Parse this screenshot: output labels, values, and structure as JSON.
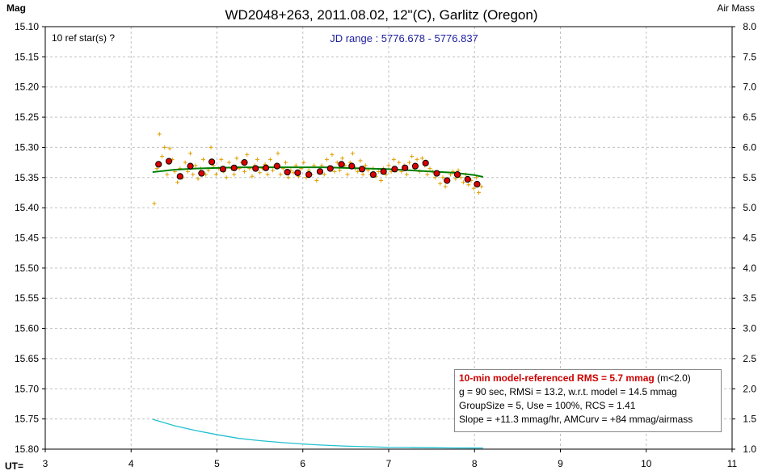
{
  "chart_data": {
    "type": "scatter",
    "title": "WD2048+263, 2011.08.02, 12\"(C), Garlitz (Oregon)",
    "subtitle": "JD range : 5776.678 - 5776.837",
    "note_top_left": "10 ref star(s) ?",
    "ylabel_left": "Mag",
    "ylabel_right": "Air Mass",
    "xlabel": "UT=",
    "xlim": [
      3,
      11
    ],
    "ylim_left": [
      15.1,
      15.8
    ],
    "ylim_left_inverted": true,
    "ylim_right": [
      1.0,
      8.0
    ],
    "grid": true,
    "x_ticks": [
      "3",
      "4",
      "5",
      "6",
      "7",
      "8",
      "9",
      "10",
      "11"
    ],
    "y_ticks_left": [
      "15.10",
      "15.15",
      "15.20",
      "15.25",
      "15.30",
      "15.35",
      "15.40",
      "15.45",
      "15.50",
      "15.55",
      "15.60",
      "15.65",
      "15.70",
      "15.75",
      "15.80"
    ],
    "y_ticks_right": [
      "8.0",
      "7.5",
      "7.0",
      "6.5",
      "6.0",
      "5.5",
      "5.0",
      "4.5",
      "4.0",
      "3.5",
      "3.0",
      "2.5",
      "2.0",
      "1.5",
      "1.0"
    ],
    "colors": {
      "raw": "#e0a000",
      "binned_fill": "#dd0000",
      "model": "#008000",
      "airmass": "#22c0d0",
      "grid": "#c0c0c0",
      "subtitle": "#2020a0",
      "rms_text": "#cc0000"
    },
    "series": [
      {
        "kind": "raw",
        "points": [
          [
            4.27,
            15.393
          ],
          [
            4.3,
            15.335
          ],
          [
            4.33,
            15.278
          ],
          [
            4.36,
            15.315
          ],
          [
            4.39,
            15.3
          ],
          [
            4.42,
            15.345
          ],
          [
            4.45,
            15.302
          ],
          [
            4.48,
            15.32
          ],
          [
            4.51,
            15.34
          ],
          [
            4.54,
            15.358
          ],
          [
            4.57,
            15.335
          ],
          [
            4.6,
            15.35
          ],
          [
            4.63,
            15.325
          ],
          [
            4.66,
            15.34
          ],
          [
            4.69,
            15.31
          ],
          [
            4.72,
            15.345
          ],
          [
            4.75,
            15.33
          ],
          [
            4.78,
            15.352
          ],
          [
            4.81,
            15.335
          ],
          [
            4.84,
            15.32
          ],
          [
            4.87,
            15.345
          ],
          [
            4.9,
            15.338
          ],
          [
            4.93,
            15.3
          ],
          [
            4.96,
            15.33
          ],
          [
            4.99,
            15.345
          ],
          [
            5.02,
            15.335
          ],
          [
            5.05,
            15.32
          ],
          [
            5.08,
            15.34
          ],
          [
            5.11,
            15.35
          ],
          [
            5.14,
            15.325
          ],
          [
            5.17,
            15.335
          ],
          [
            5.2,
            15.345
          ],
          [
            5.23,
            15.318
          ],
          [
            5.26,
            15.335
          ],
          [
            5.29,
            15.325
          ],
          [
            5.32,
            15.34
          ],
          [
            5.35,
            15.312
          ],
          [
            5.38,
            15.335
          ],
          [
            5.41,
            15.348
          ],
          [
            5.44,
            15.33
          ],
          [
            5.47,
            15.32
          ],
          [
            5.5,
            15.342
          ],
          [
            5.53,
            15.335
          ],
          [
            5.56,
            15.328
          ],
          [
            5.59,
            15.345
          ],
          [
            5.62,
            15.32
          ],
          [
            5.65,
            15.338
          ],
          [
            5.68,
            15.33
          ],
          [
            5.71,
            15.31
          ],
          [
            5.74,
            15.345
          ],
          [
            5.77,
            15.335
          ],
          [
            5.8,
            15.325
          ],
          [
            5.83,
            15.35
          ],
          [
            5.86,
            15.338
          ],
          [
            5.89,
            15.342
          ],
          [
            5.92,
            15.33
          ],
          [
            5.95,
            15.348
          ],
          [
            5.98,
            15.335
          ],
          [
            6.01,
            15.325
          ],
          [
            6.04,
            15.35
          ],
          [
            6.07,
            15.338
          ],
          [
            6.1,
            15.345
          ],
          [
            6.13,
            15.33
          ],
          [
            6.16,
            15.355
          ],
          [
            6.19,
            15.34
          ],
          [
            6.22,
            15.33
          ],
          [
            6.25,
            15.345
          ],
          [
            6.28,
            15.32
          ],
          [
            6.31,
            15.335
          ],
          [
            6.34,
            15.312
          ],
          [
            6.37,
            15.34
          ],
          [
            6.4,
            15.325
          ],
          [
            6.43,
            15.338
          ],
          [
            6.46,
            15.318
          ],
          [
            6.49,
            15.33
          ],
          [
            6.52,
            15.345
          ],
          [
            6.55,
            15.325
          ],
          [
            6.58,
            15.31
          ],
          [
            6.61,
            15.335
          ],
          [
            6.64,
            15.34
          ],
          [
            6.67,
            15.322
          ],
          [
            6.7,
            15.345
          ],
          [
            6.73,
            15.33
          ],
          [
            6.76,
            15.338
          ],
          [
            6.79,
            15.345
          ],
          [
            6.82,
            15.335
          ],
          [
            6.85,
            15.348
          ],
          [
            6.88,
            15.34
          ],
          [
            6.91,
            15.355
          ],
          [
            6.94,
            15.335
          ],
          [
            6.97,
            15.345
          ],
          [
            7.0,
            15.33
          ],
          [
            7.03,
            15.34
          ],
          [
            7.06,
            15.32
          ],
          [
            7.09,
            15.338
          ],
          [
            7.12,
            15.325
          ],
          [
            7.15,
            15.34
          ],
          [
            7.18,
            15.33
          ],
          [
            7.21,
            15.345
          ],
          [
            7.24,
            15.325
          ],
          [
            7.27,
            15.315
          ],
          [
            7.3,
            15.335
          ],
          [
            7.33,
            15.32
          ],
          [
            7.36,
            15.34
          ],
          [
            7.39,
            15.318
          ],
          [
            7.42,
            15.33
          ],
          [
            7.45,
            15.345
          ],
          [
            7.48,
            15.335
          ],
          [
            7.51,
            15.34
          ],
          [
            7.54,
            15.35
          ],
          [
            7.57,
            15.345
          ],
          [
            7.6,
            15.36
          ],
          [
            7.63,
            15.35
          ],
          [
            7.66,
            15.365
          ],
          [
            7.69,
            15.355
          ],
          [
            7.72,
            15.345
          ],
          [
            7.75,
            15.34
          ],
          [
            7.78,
            15.352
          ],
          [
            7.81,
            15.338
          ],
          [
            7.84,
            15.35
          ],
          [
            7.87,
            15.358
          ],
          [
            7.9,
            15.345
          ],
          [
            7.93,
            15.362
          ],
          [
            7.96,
            15.355
          ],
          [
            7.99,
            15.368
          ],
          [
            8.02,
            15.35
          ],
          [
            8.05,
            15.375
          ],
          [
            8.08,
            15.365
          ]
        ]
      },
      {
        "kind": "binned",
        "points": [
          [
            4.32,
            15.328
          ],
          [
            4.44,
            15.323
          ],
          [
            4.57,
            15.348
          ],
          [
            4.69,
            15.331
          ],
          [
            4.82,
            15.343
          ],
          [
            4.94,
            15.324
          ],
          [
            5.07,
            15.336
          ],
          [
            5.2,
            15.334
          ],
          [
            5.32,
            15.325
          ],
          [
            5.45,
            15.335
          ],
          [
            5.57,
            15.334
          ],
          [
            5.7,
            15.331
          ],
          [
            5.82,
            15.341
          ],
          [
            5.94,
            15.342
          ],
          [
            6.07,
            15.345
          ],
          [
            6.2,
            15.34
          ],
          [
            6.32,
            15.335
          ],
          [
            6.45,
            15.328
          ],
          [
            6.57,
            15.331
          ],
          [
            6.69,
            15.336
          ],
          [
            6.82,
            15.345
          ],
          [
            6.94,
            15.34
          ],
          [
            7.07,
            15.336
          ],
          [
            7.19,
            15.334
          ],
          [
            7.31,
            15.331
          ],
          [
            7.43,
            15.326
          ],
          [
            7.56,
            15.343
          ],
          [
            7.68,
            15.355
          ],
          [
            7.8,
            15.345
          ],
          [
            7.92,
            15.353
          ],
          [
            8.03,
            15.361
          ]
        ]
      },
      {
        "kind": "model",
        "points": [
          [
            4.25,
            15.341
          ],
          [
            4.5,
            15.337
          ],
          [
            4.75,
            15.335
          ],
          [
            5.0,
            15.334
          ],
          [
            5.25,
            15.333
          ],
          [
            5.5,
            15.333
          ],
          [
            5.75,
            15.333
          ],
          [
            6.0,
            15.333
          ],
          [
            6.25,
            15.333
          ],
          [
            6.5,
            15.334
          ],
          [
            6.75,
            15.335
          ],
          [
            7.0,
            15.336
          ],
          [
            7.25,
            15.338
          ],
          [
            7.5,
            15.34
          ],
          [
            7.75,
            15.342
          ],
          [
            8.0,
            15.346
          ],
          [
            8.1,
            15.349
          ]
        ]
      },
      {
        "kind": "airmass",
        "points": [
          [
            4.25,
            1.495
          ],
          [
            4.5,
            1.39
          ],
          [
            4.75,
            1.31
          ],
          [
            5.0,
            1.24
          ],
          [
            5.25,
            1.18
          ],
          [
            5.5,
            1.14
          ],
          [
            5.75,
            1.11
          ],
          [
            6.0,
            1.085
          ],
          [
            6.25,
            1.065
          ],
          [
            6.5,
            1.05
          ],
          [
            6.75,
            1.04
          ],
          [
            7.0,
            1.03
          ],
          [
            7.25,
            1.028
          ],
          [
            7.5,
            1.024
          ],
          [
            7.75,
            1.02
          ],
          [
            8.0,
            1.019
          ],
          [
            8.1,
            1.018
          ]
        ]
      }
    ],
    "legend": {
      "rms_line": "10-min model-referenced RMS = 5.7 mmag",
      "rms_note": "(m<2.0)",
      "line2": "g = 90 sec, RMSi = 13.2, w.r.t. model = 14.5 mmag",
      "line3": "GroupSize = 5, Use = 100%, RCS = 1.41",
      "line4": "Slope = +11.3 mmag/hr, AMCurv = +84 mmag/airmass"
    }
  }
}
